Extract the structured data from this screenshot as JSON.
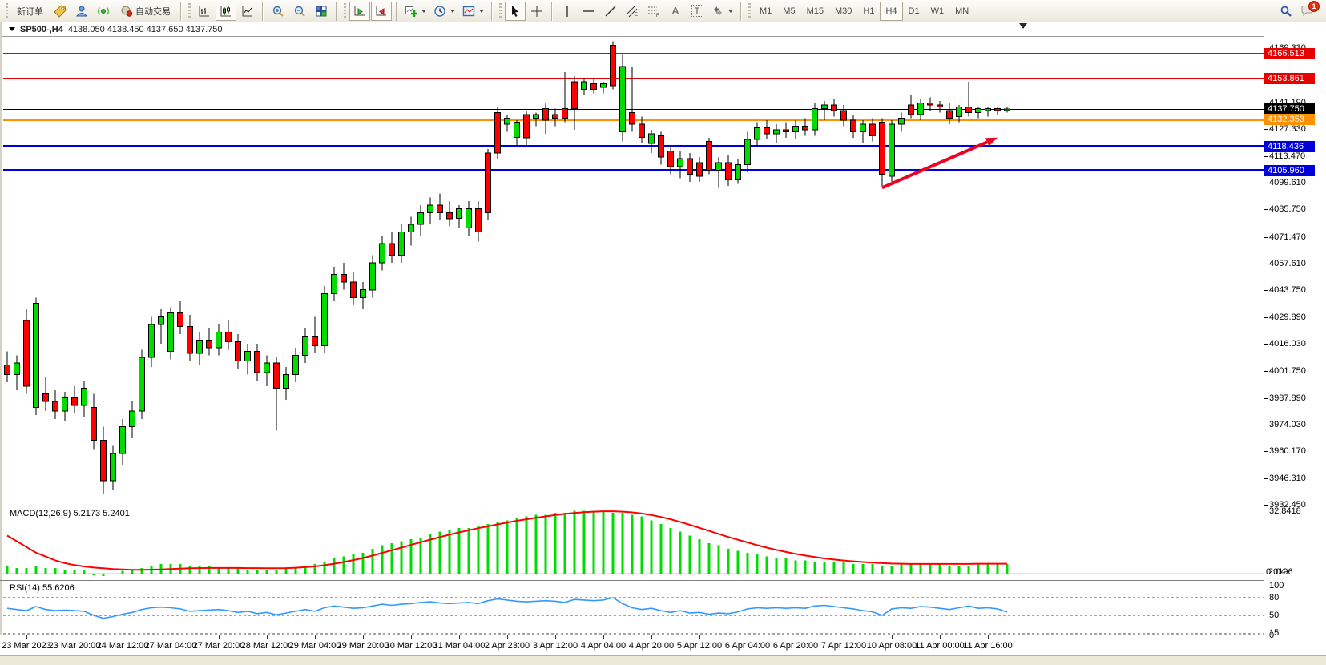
{
  "toolbar": {
    "new_order_label": "新订单",
    "auto_trade_label": "自动交易",
    "text_tool_label": "A",
    "label_tool_label": "T",
    "timeframes": [
      "M1",
      "M5",
      "M15",
      "M30",
      "H1",
      "H4",
      "D1",
      "W1",
      "MN"
    ],
    "active_timeframe": "H4",
    "notification_badge": "1"
  },
  "chart_header": {
    "symbol": "SP500-,H4",
    "ohlc_text": "4138.050 4138.450 4137.650 4137.750"
  },
  "indicators": {
    "macd_label": "MACD(12,26,9) 5.2173 5.2401",
    "rsi_label": "RSI(14) 55.6206"
  },
  "levels": [
    {
      "price": 4166.513,
      "label": "4166.513",
      "color": "#e60000",
      "thickness": 2
    },
    {
      "price": 4153.861,
      "label": "4153.861",
      "color": "#e60000",
      "thickness": 2
    },
    {
      "price": 4137.75,
      "label": "4137.750",
      "color": "#000000",
      "thickness": 1
    },
    {
      "price": 4132.353,
      "label": "4132.353",
      "color": "#ff9000",
      "thickness": 3
    },
    {
      "price": 4118.436,
      "label": "4118.436",
      "color": "#0000dd",
      "thickness": 3
    },
    {
      "price": 4105.96,
      "label": "4105.960",
      "color": "#0000dd",
      "thickness": 3
    }
  ],
  "annotations": [
    {
      "type": "arrow",
      "from": {
        "bar": 92,
        "price": 4097.0
      },
      "to": {
        "bar": 104,
        "price": 4123.0
      },
      "color": "#f00020",
      "width": 4
    }
  ],
  "chart_data": [
    {
      "type": "candlestick",
      "title": "SP500- H4",
      "up_color": "#00dc00",
      "down_color": "#ff0000",
      "wick_color": "#000000",
      "ylim": [
        3932.45,
        4175.3
      ],
      "yticks": [
        "4169.330",
        "4141.190",
        "4127.330",
        "4113.470",
        "4099.610",
        "4085.750",
        "4071.470",
        "4057.610",
        "4043.750",
        "4029.890",
        "4016.030",
        "4001.750",
        "3987.890",
        "3974.030",
        "3960.170",
        "3946.310",
        "3932.450"
      ],
      "x_labels": [
        "23 Mar 2023",
        "23 Mar 20:00",
        "24 Mar 12:00",
        "27 Mar 04:00",
        "27 Mar 20:00",
        "28 Mar 12:00",
        "29 Mar 04:00",
        "29 Mar 20:00",
        "30 Mar 12:00",
        "31 Mar 04:00",
        "2 Apr 23:00",
        "3 Apr 12:00",
        "4 Apr 04:00",
        "4 Apr 20:00",
        "5 Apr 12:00",
        "6 Apr 04:00",
        "6 Apr 20:00",
        "7 Apr 12:00",
        "10 Apr 08:00",
        "11 Apr 00:00",
        "11 Apr 16:00"
      ],
      "first_label_bar": 3,
      "label_every": 5,
      "ohlc": [
        [
          4005,
          4012,
          3996,
          4000
        ],
        [
          4000,
          4010,
          3992,
          4006
        ],
        [
          4028,
          4034,
          3990,
          3994
        ],
        [
          3983,
          4040,
          3979,
          4037
        ],
        [
          3990,
          3999,
          3981,
          3986
        ],
        [
          3986,
          3992,
          3977,
          3981
        ],
        [
          3981,
          3991,
          3976,
          3988
        ],
        [
          3988,
          3994,
          3980,
          3984
        ],
        [
          3984,
          3997,
          3978,
          3993
        ],
        [
          3983,
          3990,
          3961,
          3966
        ],
        [
          3966,
          3973,
          3938,
          3945
        ],
        [
          3945,
          3963,
          3940,
          3959
        ],
        [
          3959,
          3977,
          3953,
          3973
        ],
        [
          3973,
          3986,
          3967,
          3981
        ],
        [
          3981,
          4013,
          3977,
          4009
        ],
        [
          4009,
          4030,
          4004,
          4026
        ],
        [
          4026,
          4034,
          4016,
          4030
        ],
        [
          4012,
          4035,
          4008,
          4032
        ],
        [
          4032,
          4038,
          4021,
          4025
        ],
        [
          4025,
          4031,
          4007,
          4011
        ],
        [
          4011,
          4022,
          4005,
          4018
        ],
        [
          4018,
          4024,
          4010,
          4014
        ],
        [
          4014,
          4026,
          4010,
          4022
        ],
        [
          4022,
          4028,
          4013,
          4017
        ],
        [
          4017,
          4021,
          4003,
          4007
        ],
        [
          4007,
          4016,
          4000,
          4012
        ],
        [
          4012,
          4016,
          3997,
          4001
        ],
        [
          4001,
          4010,
          3994,
          4006
        ],
        [
          4006,
          4009,
          3971,
          3993
        ],
        [
          3993,
          4004,
          3987,
          4000
        ],
        [
          4000,
          4014,
          3996,
          4010
        ],
        [
          4010,
          4024,
          4006,
          4020
        ],
        [
          4020,
          4030,
          4011,
          4015
        ],
        [
          4015,
          4046,
          4011,
          4042
        ],
        [
          4042,
          4056,
          4038,
          4052
        ],
        [
          4052,
          4058,
          4044,
          4048
        ],
        [
          4048,
          4053,
          4036,
          4040
        ],
        [
          4040,
          4048,
          4034,
          4044
        ],
        [
          4044,
          4062,
          4040,
          4058
        ],
        [
          4058,
          4072,
          4054,
          4068
        ],
        [
          4068,
          4074,
          4058,
          4062
        ],
        [
          4062,
          4078,
          4058,
          4074
        ],
        [
          4074,
          4082,
          4067,
          4078
        ],
        [
          4078,
          4088,
          4072,
          4084
        ],
        [
          4084,
          4092,
          4078,
          4088
        ],
        [
          4088,
          4094,
          4080,
          4084
        ],
        [
          4084,
          4090,
          4077,
          4081
        ],
        [
          4081,
          4088,
          4076,
          4086
        ],
        [
          4076,
          4090,
          4072,
          4086
        ],
        [
          4086,
          4090,
          4069,
          4074
        ],
        [
          4115,
          4117,
          4080,
          4084
        ],
        [
          4136,
          4139,
          4112,
          4115
        ],
        [
          4130,
          4135,
          4126,
          4133
        ],
        [
          4123,
          4132,
          4119,
          4131
        ],
        [
          4135,
          4137,
          4119,
          4123
        ],
        [
          4133,
          4136,
          4129,
          4135
        ],
        [
          4138,
          4141,
          4125,
          4132
        ],
        [
          4135,
          4138,
          4129,
          4133
        ],
        [
          4138,
          4157,
          4131,
          4133
        ],
        [
          4152,
          4155,
          4127,
          4138
        ],
        [
          4148,
          4154,
          4145,
          4152
        ],
        [
          4151,
          4154,
          4146,
          4148
        ],
        [
          4149,
          4152,
          4146,
          4151
        ],
        [
          4171,
          4173,
          4148,
          4150
        ],
        [
          4126,
          4166,
          4121,
          4160
        ],
        [
          4136,
          4160,
          4126,
          4130
        ],
        [
          4130,
          4134,
          4120,
          4123
        ],
        [
          4120,
          4127,
          4115,
          4125
        ],
        [
          4124,
          4126,
          4109,
          4113
        ],
        [
          4116,
          4119,
          4104,
          4108
        ],
        [
          4108,
          4116,
          4102,
          4112
        ],
        [
          4112,
          4115,
          4100,
          4104
        ],
        [
          4110,
          4113,
          4100,
          4103
        ],
        [
          4121,
          4123,
          4104,
          4106
        ],
        [
          4106,
          4113,
          4097,
          4110
        ],
        [
          4110,
          4114,
          4098,
          4101
        ],
        [
          4101,
          4112,
          4099,
          4109
        ],
        [
          4109,
          4126,
          4105,
          4122
        ],
        [
          4122,
          4131,
          4118,
          4128
        ],
        [
          4128,
          4132,
          4122,
          4125
        ],
        [
          4125,
          4130,
          4120,
          4127
        ],
        [
          4127,
          4131,
          4123,
          4126
        ],
        [
          4126,
          4132,
          4122,
          4129
        ],
        [
          4129,
          4133,
          4124,
          4127
        ],
        [
          4127,
          4141,
          4124,
          4138
        ],
        [
          4138,
          4142,
          4132,
          4140
        ],
        [
          4140,
          4143,
          4134,
          4137
        ],
        [
          4137,
          4140,
          4129,
          4132
        ],
        [
          4132,
          4135,
          4123,
          4126
        ],
        [
          4126,
          4132,
          4120,
          4130
        ],
        [
          4130,
          4133,
          4121,
          4124
        ],
        [
          4131,
          4133,
          4098,
          4104
        ],
        [
          4103,
          4132,
          4100,
          4130
        ],
        [
          4130,
          4136,
          4126,
          4133
        ],
        [
          4140,
          4145,
          4133,
          4135
        ],
        [
          4135,
          4143,
          4132,
          4141
        ],
        [
          4141,
          4144,
          4137,
          4140
        ],
        [
          4140,
          4142,
          4136,
          4139
        ],
        [
          4137,
          4141,
          4130,
          4133
        ],
        [
          4134,
          4140,
          4131,
          4139
        ],
        [
          4139,
          4152,
          4134,
          4136
        ],
        [
          4136,
          4139,
          4133,
          4138
        ],
        [
          4137,
          4139,
          4134,
          4138
        ],
        [
          4138,
          4139,
          4135,
          4137
        ],
        [
          4137,
          4139,
          4136,
          4137.8
        ]
      ]
    },
    {
      "type": "bar",
      "name": "MACD histogram",
      "color": "#00dc00",
      "ylim": [
        -2,
        32.8418
      ],
      "ytick_top": "32.8418",
      "ytick_zero_overlap": [
        "2.04",
        "0.0196"
      ],
      "values": [
        4,
        3,
        3,
        4,
        3,
        3,
        2,
        2,
        2,
        -0.8,
        -1.2,
        -0.5,
        1.5,
        2,
        3,
        4,
        5,
        5,
        5,
        4,
        4,
        4,
        3,
        3,
        3,
        2,
        2,
        2,
        2,
        3,
        3,
        4,
        5,
        6,
        8,
        9,
        10,
        11,
        13,
        15,
        16,
        17,
        18,
        19,
        21,
        22,
        23,
        24,
        24,
        25,
        26,
        27,
        28,
        29,
        30,
        31,
        31,
        32,
        32,
        33,
        33,
        33,
        33,
        32,
        32,
        31,
        30,
        28,
        26,
        24,
        22,
        20,
        18,
        16,
        15,
        13,
        12,
        11,
        10,
        9,
        8,
        8,
        7,
        7,
        6,
        6,
        6,
        6,
        5,
        5,
        5,
        4,
        4,
        5,
        5,
        5,
        5,
        5,
        4,
        4,
        4,
        5,
        5,
        5,
        5
      ]
    },
    {
      "type": "line",
      "name": "MACD signal",
      "color": "#ff0000",
      "values": [
        20,
        17,
        14,
        11,
        9,
        7,
        5.5,
        4.5,
        3.8,
        3.2,
        2.8,
        2.4,
        2.2,
        2,
        2,
        2.1,
        2.2,
        2.4,
        2.6,
        2.8,
        2.9,
        3,
        3,
        3,
        3,
        2.9,
        2.9,
        2.8,
        2.8,
        2.9,
        3.1,
        3.4,
        3.8,
        4.4,
        5.2,
        6.1,
        7.1,
        8.2,
        9.5,
        10.9,
        12.3,
        13.7,
        15.1,
        16.5,
        17.9,
        19.2,
        20.5,
        21.7,
        22.8,
        23.9,
        24.9,
        25.9,
        26.9,
        27.8,
        28.6,
        29.4,
        30.1,
        30.8,
        31.4,
        31.9,
        32.3,
        32.6,
        32.8,
        32.8,
        32.6,
        32.2,
        31.6,
        30.8,
        29.8,
        28.6,
        27.2,
        25.7,
        24.1,
        22.5,
        20.9,
        19.3,
        17.8,
        16.4,
        15,
        13.7,
        12.5,
        11.4,
        10.4,
        9.5,
        8.7,
        8,
        7.4,
        6.9,
        6.5,
        6.1,
        5.8,
        5.5,
        5.3,
        5.2,
        5.1,
        5.1,
        5.1,
        5.1,
        5.1,
        5.1,
        5.1,
        5.2,
        5.2,
        5.2,
        5.2
      ]
    },
    {
      "type": "line",
      "name": "RSI",
      "color": "#3399ff",
      "ylim": [
        0,
        100
      ],
      "levels": [
        80,
        50,
        15
      ],
      "yticks": [
        "100",
        "80",
        "50",
        "15",
        "0"
      ],
      "values": [
        62,
        60,
        58,
        65,
        60,
        58,
        59,
        58,
        57,
        50,
        45,
        48,
        52,
        55,
        60,
        63,
        64,
        63,
        61,
        57,
        58,
        59,
        60,
        58,
        55,
        57,
        53,
        55,
        51,
        54,
        57,
        60,
        57,
        63,
        66,
        64,
        62,
        63,
        66,
        69,
        67,
        69,
        70,
        72,
        73,
        71,
        70,
        71,
        72,
        70,
        75,
        78,
        76,
        74,
        73,
        74,
        75,
        74,
        72,
        77,
        76,
        75,
        76,
        80,
        70,
        63,
        60,
        62,
        58,
        55,
        58,
        54,
        55,
        52,
        54,
        53,
        56,
        61,
        63,
        62,
        63,
        62,
        63,
        62,
        66,
        67,
        65,
        63,
        61,
        58,
        56,
        50,
        61,
        63,
        62,
        65,
        64,
        62,
        60,
        63,
        66,
        62,
        63,
        61,
        55.6
      ]
    }
  ]
}
